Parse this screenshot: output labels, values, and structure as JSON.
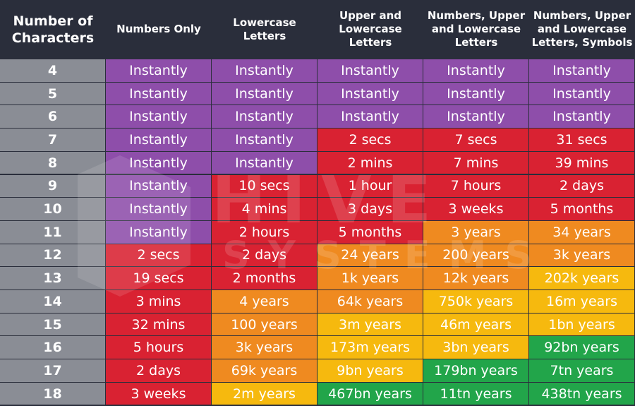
{
  "colors": {
    "instantly": "#8e4eaa",
    "red": "#d92232",
    "orange": "#ef8a20",
    "yellow": "#f6b90e",
    "green": "#22a54a",
    "header_bg": "#2a2e3b",
    "label_bg": "#8a8d95"
  },
  "watermark": {
    "text_top": "HIVE",
    "text_bottom": "SYSTEMS"
  },
  "headers": [
    "Number of Characters",
    "Numbers Only",
    "Lowercase Letters",
    "Upper and Lowercase Letters",
    "Numbers, Upper and Lowercase Letters",
    "Numbers, Upper and Lowercase Letters, Symbols"
  ],
  "rows": [
    {
      "chars": "4",
      "cells": [
        {
          "text": "Instantly",
          "tone": "instantly"
        },
        {
          "text": "Instantly",
          "tone": "instantly"
        },
        {
          "text": "Instantly",
          "tone": "instantly"
        },
        {
          "text": "Instantly",
          "tone": "instantly"
        },
        {
          "text": "Instantly",
          "tone": "instantly"
        }
      ]
    },
    {
      "chars": "5",
      "cells": [
        {
          "text": "Instantly",
          "tone": "instantly"
        },
        {
          "text": "Instantly",
          "tone": "instantly"
        },
        {
          "text": "Instantly",
          "tone": "instantly"
        },
        {
          "text": "Instantly",
          "tone": "instantly"
        },
        {
          "text": "Instantly",
          "tone": "instantly"
        }
      ]
    },
    {
      "chars": "6",
      "cells": [
        {
          "text": "Instantly",
          "tone": "instantly"
        },
        {
          "text": "Instantly",
          "tone": "instantly"
        },
        {
          "text": "Instantly",
          "tone": "instantly"
        },
        {
          "text": "Instantly",
          "tone": "instantly"
        },
        {
          "text": "Instantly",
          "tone": "instantly"
        }
      ]
    },
    {
      "chars": "7",
      "cells": [
        {
          "text": "Instantly",
          "tone": "instantly"
        },
        {
          "text": "Instantly",
          "tone": "instantly"
        },
        {
          "text": "2 secs",
          "tone": "red"
        },
        {
          "text": "7 secs",
          "tone": "red"
        },
        {
          "text": "31 secs",
          "tone": "red"
        }
      ]
    },
    {
      "chars": "8",
      "cells": [
        {
          "text": "Instantly",
          "tone": "instantly"
        },
        {
          "text": "Instantly",
          "tone": "instantly"
        },
        {
          "text": "2 mins",
          "tone": "red"
        },
        {
          "text": "7 mins",
          "tone": "red"
        },
        {
          "text": "39 mins",
          "tone": "red"
        }
      ]
    },
    {
      "chars": "9",
      "cells": [
        {
          "text": "Instantly",
          "tone": "instantly"
        },
        {
          "text": "10 secs",
          "tone": "red"
        },
        {
          "text": "1 hour",
          "tone": "red"
        },
        {
          "text": "7 hours",
          "tone": "red"
        },
        {
          "text": "2 days",
          "tone": "red"
        }
      ]
    },
    {
      "chars": "10",
      "cells": [
        {
          "text": "Instantly",
          "tone": "instantly"
        },
        {
          "text": "4 mins",
          "tone": "red"
        },
        {
          "text": "3 days",
          "tone": "red"
        },
        {
          "text": "3 weeks",
          "tone": "red"
        },
        {
          "text": "5 months",
          "tone": "red"
        }
      ]
    },
    {
      "chars": "11",
      "cells": [
        {
          "text": "Instantly",
          "tone": "instantly"
        },
        {
          "text": "2 hours",
          "tone": "red"
        },
        {
          "text": "5 months",
          "tone": "red"
        },
        {
          "text": "3 years",
          "tone": "orange"
        },
        {
          "text": "34 years",
          "tone": "orange"
        }
      ]
    },
    {
      "chars": "12",
      "cells": [
        {
          "text": "2 secs",
          "tone": "red"
        },
        {
          "text": "2 days",
          "tone": "red"
        },
        {
          "text": "24 years",
          "tone": "orange"
        },
        {
          "text": "200 years",
          "tone": "orange"
        },
        {
          "text": "3k years",
          "tone": "orange"
        }
      ]
    },
    {
      "chars": "13",
      "cells": [
        {
          "text": "19 secs",
          "tone": "red"
        },
        {
          "text": "2 months",
          "tone": "red"
        },
        {
          "text": "1k years",
          "tone": "orange"
        },
        {
          "text": "12k years",
          "tone": "orange"
        },
        {
          "text": "202k years",
          "tone": "yellow"
        }
      ]
    },
    {
      "chars": "14",
      "cells": [
        {
          "text": "3 mins",
          "tone": "red"
        },
        {
          "text": "4 years",
          "tone": "orange"
        },
        {
          "text": "64k years",
          "tone": "orange"
        },
        {
          "text": "750k years",
          "tone": "yellow"
        },
        {
          "text": "16m years",
          "tone": "yellow"
        }
      ]
    },
    {
      "chars": "15",
      "cells": [
        {
          "text": "32 mins",
          "tone": "red"
        },
        {
          "text": "100 years",
          "tone": "orange"
        },
        {
          "text": "3m years",
          "tone": "yellow"
        },
        {
          "text": "46m years",
          "tone": "yellow"
        },
        {
          "text": "1bn years",
          "tone": "yellow"
        }
      ]
    },
    {
      "chars": "16",
      "cells": [
        {
          "text": "5 hours",
          "tone": "red"
        },
        {
          "text": "3k years",
          "tone": "orange"
        },
        {
          "text": "173m years",
          "tone": "yellow"
        },
        {
          "text": "3bn years",
          "tone": "yellow"
        },
        {
          "text": "92bn years",
          "tone": "green"
        }
      ]
    },
    {
      "chars": "17",
      "cells": [
        {
          "text": "2 days",
          "tone": "red"
        },
        {
          "text": "69k years",
          "tone": "orange"
        },
        {
          "text": "9bn years",
          "tone": "yellow"
        },
        {
          "text": "179bn years",
          "tone": "green"
        },
        {
          "text": "7tn years",
          "tone": "green"
        }
      ]
    },
    {
      "chars": "18",
      "cells": [
        {
          "text": "3 weeks",
          "tone": "red"
        },
        {
          "text": "2m years",
          "tone": "yellow"
        },
        {
          "text": "467bn years",
          "tone": "green"
        },
        {
          "text": "11tn years",
          "tone": "green"
        },
        {
          "text": "438tn years",
          "tone": "green"
        }
      ]
    }
  ]
}
